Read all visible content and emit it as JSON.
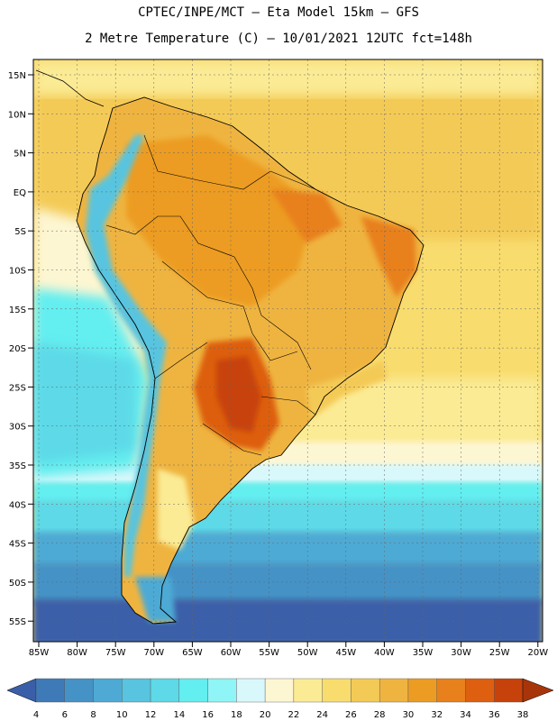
{
  "header": {
    "line1": "CPTEC/INPE/MCT –  Eta Model 15km – GFS",
    "line2": "2 Metre Temperature (C) – 10/01/2021 12UTC fct=148h"
  },
  "lat_labels": [
    "15N",
    "10N",
    "5N",
    "EQ",
    "5S",
    "10S",
    "15S",
    "20S",
    "25S",
    "30S",
    "35S",
    "40S",
    "45S",
    "50S",
    "55S"
  ],
  "lon_labels": [
    "85W",
    "80W",
    "75W",
    "70W",
    "65W",
    "60W",
    "55W",
    "50W",
    "45W",
    "40W",
    "35W",
    "30W",
    "25W",
    "20W"
  ],
  "colorbar": {
    "ticks": [
      "4",
      "6",
      "8",
      "10",
      "12",
      "14",
      "16",
      "18",
      "20",
      "22",
      "24",
      "26",
      "28",
      "30",
      "32",
      "34",
      "36",
      "38"
    ],
    "colors": [
      "#3a5fa8",
      "#3f7ab8",
      "#4592c6",
      "#4eaad4",
      "#58c4df",
      "#5dd9e7",
      "#63eef0",
      "#8ff5f7",
      "#d8f8fb",
      "#fdf6d2",
      "#fbeb94",
      "#f8dc6e",
      "#f4ca56",
      "#efb440",
      "#ec9c22",
      "#e8801c",
      "#dd5f0f",
      "#c7420a",
      "#a8350a"
    ]
  },
  "palette": {
    "ocean_warm": "#f8dc6e",
    "ocean_tropical": "#f4ca56",
    "land_hot": "#e0a035",
    "land_very_hot": "#c7560d",
    "andes_cold": "#58c4df"
  }
}
